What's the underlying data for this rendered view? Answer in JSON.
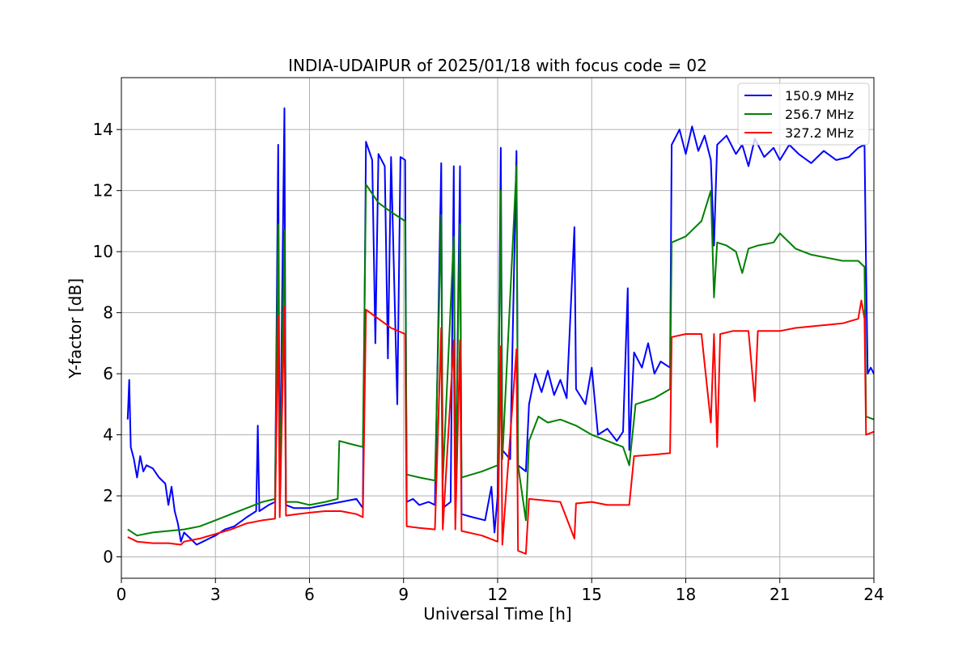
{
  "chart_data": {
    "type": "line",
    "title": "INDIA-UDAIPUR of 2025/01/18 with focus code = 02",
    "xlabel": "Universal Time [h]",
    "ylabel": "Y-factor [dB]",
    "xlim": [
      0,
      24
    ],
    "ylim": [
      -0.7,
      15.7
    ],
    "xticks": [
      0,
      3,
      6,
      9,
      12,
      15,
      18,
      21,
      24
    ],
    "yticks": [
      0,
      2,
      4,
      6,
      8,
      10,
      12,
      14
    ],
    "grid": true,
    "legend_position": "top-right",
    "series": [
      {
        "name": "150.9 MHz",
        "color": "#0000ff",
        "points": [
          [
            0.2,
            4.5
          ],
          [
            0.25,
            5.8
          ],
          [
            0.3,
            3.6
          ],
          [
            0.4,
            3.2
          ],
          [
            0.5,
            2.6
          ],
          [
            0.6,
            3.3
          ],
          [
            0.7,
            2.8
          ],
          [
            0.8,
            3.0
          ],
          [
            1.0,
            2.9
          ],
          [
            1.2,
            2.6
          ],
          [
            1.4,
            2.4
          ],
          [
            1.5,
            1.7
          ],
          [
            1.6,
            2.3
          ],
          [
            1.7,
            1.5
          ],
          [
            1.8,
            1.1
          ],
          [
            1.9,
            0.5
          ],
          [
            2.0,
            0.8
          ],
          [
            2.2,
            0.6
          ],
          [
            2.4,
            0.4
          ],
          [
            2.6,
            0.5
          ],
          [
            2.8,
            0.6
          ],
          [
            3.0,
            0.7
          ],
          [
            3.3,
            0.9
          ],
          [
            3.6,
            1.0
          ],
          [
            4.0,
            1.3
          ],
          [
            4.3,
            1.5
          ],
          [
            4.35,
            4.3
          ],
          [
            4.4,
            1.5
          ],
          [
            4.7,
            1.7
          ],
          [
            4.9,
            1.8
          ],
          [
            5.0,
            13.5
          ],
          [
            5.05,
            1.9
          ],
          [
            5.2,
            14.7
          ],
          [
            5.25,
            1.7
          ],
          [
            5.5,
            1.6
          ],
          [
            6.0,
            1.6
          ],
          [
            6.5,
            1.7
          ],
          [
            7.0,
            1.8
          ],
          [
            7.5,
            1.9
          ],
          [
            7.7,
            1.6
          ],
          [
            7.8,
            13.6
          ],
          [
            8.0,
            13.0
          ],
          [
            8.1,
            7.0
          ],
          [
            8.2,
            13.2
          ],
          [
            8.4,
            12.8
          ],
          [
            8.5,
            6.5
          ],
          [
            8.6,
            13.1
          ],
          [
            8.8,
            5.0
          ],
          [
            8.9,
            13.1
          ],
          [
            9.05,
            13.0
          ],
          [
            9.1,
            1.8
          ],
          [
            9.3,
            1.9
          ],
          [
            9.5,
            1.7
          ],
          [
            9.8,
            1.8
          ],
          [
            10.0,
            1.7
          ],
          [
            10.2,
            12.9
          ],
          [
            10.25,
            1.6
          ],
          [
            10.5,
            1.8
          ],
          [
            10.6,
            12.8
          ],
          [
            10.65,
            1.5
          ],
          [
            10.8,
            12.8
          ],
          [
            10.85,
            1.4
          ],
          [
            11.2,
            1.3
          ],
          [
            11.6,
            1.2
          ],
          [
            11.8,
            2.3
          ],
          [
            11.9,
            0.8
          ],
          [
            12.0,
            2.0
          ],
          [
            12.1,
            13.4
          ],
          [
            12.15,
            3.5
          ],
          [
            12.4,
            3.2
          ],
          [
            12.6,
            13.3
          ],
          [
            12.65,
            3.0
          ],
          [
            12.9,
            2.8
          ],
          [
            13.0,
            5.0
          ],
          [
            13.2,
            6.0
          ],
          [
            13.4,
            5.4
          ],
          [
            13.6,
            6.1
          ],
          [
            13.8,
            5.3
          ],
          [
            14.0,
            5.8
          ],
          [
            14.2,
            5.2
          ],
          [
            14.45,
            10.8
          ],
          [
            14.5,
            5.5
          ],
          [
            14.8,
            5.0
          ],
          [
            15.0,
            6.2
          ],
          [
            15.2,
            4.0
          ],
          [
            15.5,
            4.2
          ],
          [
            15.8,
            3.8
          ],
          [
            16.0,
            4.1
          ],
          [
            16.15,
            8.8
          ],
          [
            16.2,
            3.5
          ],
          [
            16.35,
            6.7
          ],
          [
            16.6,
            6.2
          ],
          [
            16.8,
            7.0
          ],
          [
            17.0,
            6.0
          ],
          [
            17.2,
            6.4
          ],
          [
            17.5,
            6.2
          ],
          [
            17.55,
            13.5
          ],
          [
            17.8,
            14.0
          ],
          [
            18.0,
            13.2
          ],
          [
            18.2,
            14.1
          ],
          [
            18.4,
            13.3
          ],
          [
            18.6,
            13.8
          ],
          [
            18.8,
            13.0
          ],
          [
            18.9,
            10.2
          ],
          [
            19.0,
            13.5
          ],
          [
            19.3,
            13.8
          ],
          [
            19.6,
            13.2
          ],
          [
            19.8,
            13.5
          ],
          [
            20.0,
            12.8
          ],
          [
            20.2,
            13.7
          ],
          [
            20.5,
            13.1
          ],
          [
            20.8,
            13.4
          ],
          [
            21.0,
            13.0
          ],
          [
            21.3,
            13.5
          ],
          [
            21.6,
            13.2
          ],
          [
            22.0,
            12.9
          ],
          [
            22.4,
            13.3
          ],
          [
            22.8,
            13.0
          ],
          [
            23.2,
            13.1
          ],
          [
            23.5,
            13.4
          ],
          [
            23.7,
            13.5
          ],
          [
            23.75,
            9.5
          ],
          [
            23.8,
            6.0
          ],
          [
            23.9,
            6.2
          ],
          [
            24.0,
            6.0
          ]
        ]
      },
      {
        "name": "256.7 MHz",
        "color": "#008000",
        "points": [
          [
            0.2,
            0.9
          ],
          [
            0.5,
            0.7
          ],
          [
            1.0,
            0.8
          ],
          [
            1.5,
            0.85
          ],
          [
            2.0,
            0.9
          ],
          [
            2.5,
            1.0
          ],
          [
            3.0,
            1.2
          ],
          [
            3.5,
            1.4
          ],
          [
            4.0,
            1.6
          ],
          [
            4.5,
            1.8
          ],
          [
            4.9,
            1.9
          ],
          [
            5.0,
            10.9
          ],
          [
            5.05,
            1.9
          ],
          [
            5.2,
            10.7
          ],
          [
            5.25,
            1.8
          ],
          [
            5.6,
            1.8
          ],
          [
            6.0,
            1.7
          ],
          [
            6.5,
            1.8
          ],
          [
            6.9,
            1.9
          ],
          [
            6.95,
            3.8
          ],
          [
            7.3,
            3.7
          ],
          [
            7.7,
            3.6
          ],
          [
            7.8,
            12.2
          ],
          [
            8.2,
            11.6
          ],
          [
            8.6,
            11.3
          ],
          [
            9.05,
            11.0
          ],
          [
            9.1,
            2.7
          ],
          [
            9.5,
            2.6
          ],
          [
            10.0,
            2.5
          ],
          [
            10.2,
            11.2
          ],
          [
            10.25,
            2.5
          ],
          [
            10.6,
            10.5
          ],
          [
            10.65,
            2.5
          ],
          [
            10.8,
            10.9
          ],
          [
            10.85,
            2.6
          ],
          [
            11.5,
            2.8
          ],
          [
            12.0,
            3.0
          ],
          [
            12.1,
            12.0
          ],
          [
            12.15,
            3.2
          ],
          [
            12.6,
            12.8
          ],
          [
            12.65,
            3.0
          ],
          [
            12.9,
            1.2
          ],
          [
            13.0,
            3.8
          ],
          [
            13.3,
            4.6
          ],
          [
            13.6,
            4.4
          ],
          [
            14.0,
            4.5
          ],
          [
            14.5,
            4.3
          ],
          [
            15.0,
            4.0
          ],
          [
            15.5,
            3.8
          ],
          [
            16.0,
            3.6
          ],
          [
            16.2,
            3.0
          ],
          [
            16.4,
            5.0
          ],
          [
            17.0,
            5.2
          ],
          [
            17.5,
            5.5
          ],
          [
            17.55,
            10.3
          ],
          [
            18.0,
            10.5
          ],
          [
            18.5,
            11.0
          ],
          [
            18.8,
            12.0
          ],
          [
            18.9,
            8.5
          ],
          [
            19.0,
            10.3
          ],
          [
            19.3,
            10.2
          ],
          [
            19.6,
            10.0
          ],
          [
            19.8,
            9.3
          ],
          [
            20.0,
            10.1
          ],
          [
            20.3,
            10.2
          ],
          [
            20.8,
            10.3
          ],
          [
            21.0,
            10.6
          ],
          [
            21.5,
            10.1
          ],
          [
            22.0,
            9.9
          ],
          [
            22.5,
            9.8
          ],
          [
            23.0,
            9.7
          ],
          [
            23.5,
            9.7
          ],
          [
            23.7,
            9.5
          ],
          [
            23.75,
            4.6
          ],
          [
            24.0,
            4.5
          ]
        ]
      },
      {
        "name": "327.2 MHz",
        "color": "#ff0000",
        "points": [
          [
            0.2,
            0.65
          ],
          [
            0.5,
            0.5
          ],
          [
            1.0,
            0.45
          ],
          [
            1.5,
            0.45
          ],
          [
            1.9,
            0.4
          ],
          [
            2.0,
            0.5
          ],
          [
            2.5,
            0.6
          ],
          [
            3.0,
            0.75
          ],
          [
            3.5,
            0.9
          ],
          [
            4.0,
            1.1
          ],
          [
            4.5,
            1.2
          ],
          [
            4.9,
            1.25
          ],
          [
            5.0,
            7.9
          ],
          [
            5.05,
            1.3
          ],
          [
            5.2,
            8.2
          ],
          [
            5.25,
            1.35
          ],
          [
            5.6,
            1.4
          ],
          [
            6.0,
            1.45
          ],
          [
            6.5,
            1.5
          ],
          [
            7.0,
            1.5
          ],
          [
            7.5,
            1.4
          ],
          [
            7.7,
            1.3
          ],
          [
            7.8,
            8.1
          ],
          [
            8.2,
            7.8
          ],
          [
            8.6,
            7.5
          ],
          [
            9.05,
            7.3
          ],
          [
            9.1,
            1.0
          ],
          [
            9.5,
            0.95
          ],
          [
            10.0,
            0.9
          ],
          [
            10.2,
            7.5
          ],
          [
            10.25,
            0.9
          ],
          [
            10.6,
            7.1
          ],
          [
            10.65,
            0.9
          ],
          [
            10.8,
            7.1
          ],
          [
            10.85,
            0.85
          ],
          [
            11.5,
            0.7
          ],
          [
            12.0,
            0.5
          ],
          [
            12.1,
            6.9
          ],
          [
            12.15,
            0.4
          ],
          [
            12.6,
            6.8
          ],
          [
            12.65,
            0.2
          ],
          [
            12.9,
            0.1
          ],
          [
            13.0,
            1.9
          ],
          [
            13.5,
            1.85
          ],
          [
            14.0,
            1.8
          ],
          [
            14.45,
            0.6
          ],
          [
            14.5,
            1.75
          ],
          [
            15.0,
            1.8
          ],
          [
            15.5,
            1.7
          ],
          [
            16.0,
            1.7
          ],
          [
            16.2,
            1.7
          ],
          [
            16.35,
            3.3
          ],
          [
            17.0,
            3.35
          ],
          [
            17.5,
            3.4
          ],
          [
            17.55,
            7.2
          ],
          [
            18.0,
            7.3
          ],
          [
            18.5,
            7.3
          ],
          [
            18.8,
            4.4
          ],
          [
            18.9,
            7.3
          ],
          [
            19.0,
            3.6
          ],
          [
            19.1,
            7.3
          ],
          [
            19.5,
            7.4
          ],
          [
            20.0,
            7.4
          ],
          [
            20.2,
            5.1
          ],
          [
            20.3,
            7.4
          ],
          [
            21.0,
            7.4
          ],
          [
            21.5,
            7.5
          ],
          [
            22.0,
            7.55
          ],
          [
            22.5,
            7.6
          ],
          [
            23.0,
            7.65
          ],
          [
            23.5,
            7.8
          ],
          [
            23.6,
            8.4
          ],
          [
            23.7,
            7.8
          ],
          [
            23.75,
            4.0
          ],
          [
            24.0,
            4.1
          ]
        ]
      }
    ]
  }
}
